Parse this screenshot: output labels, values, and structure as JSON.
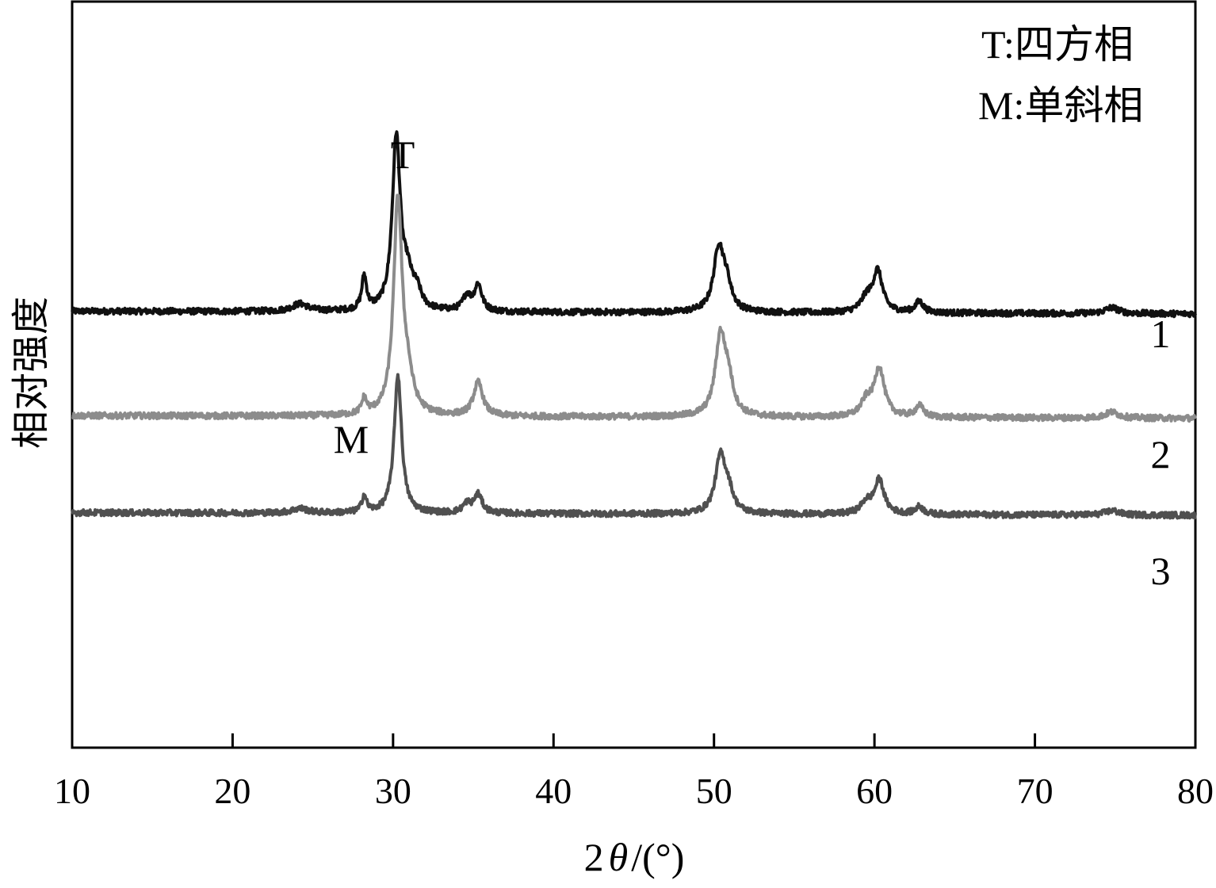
{
  "chart_data": {
    "type": "line",
    "title": "",
    "xlabel": "2θ/(°)",
    "xlabel_parts": {
      "number": "2",
      "symbol": "θ",
      "unit": "/(°)"
    },
    "ylabel": "相对强度",
    "xlim": [
      10,
      80
    ],
    "x_ticks": [
      10,
      20,
      30,
      40,
      50,
      60,
      70,
      80
    ],
    "y_ticks_shown": false,
    "grid": false,
    "legend_lines": [
      "T:四方相",
      "M:单斜相"
    ],
    "legend_position": "top-right",
    "annotations": [
      {
        "text": "T",
        "x": 30.3
      },
      {
        "text": "M",
        "x": 27.3
      }
    ],
    "series": [
      {
        "label": "1",
        "color": "#111111",
        "baseline": 0.585,
        "peaks": [
          {
            "x": 24.2,
            "h": 0.01,
            "w": 0.6
          },
          {
            "x": 28.2,
            "h": 0.045,
            "w": 0.18
          },
          {
            "x": 30.2,
            "h": 0.23,
            "w": 0.3
          },
          {
            "x": 30.9,
            "h": 0.04,
            "w": 0.4
          },
          {
            "x": 31.5,
            "h": 0.02,
            "w": 0.3
          },
          {
            "x": 34.6,
            "h": 0.02,
            "w": 0.3
          },
          {
            "x": 35.3,
            "h": 0.035,
            "w": 0.28
          },
          {
            "x": 50.3,
            "h": 0.085,
            "w": 0.38
          },
          {
            "x": 50.8,
            "h": 0.03,
            "w": 0.35
          },
          {
            "x": 59.5,
            "h": 0.018,
            "w": 0.4
          },
          {
            "x": 60.2,
            "h": 0.055,
            "w": 0.36
          },
          {
            "x": 62.8,
            "h": 0.015,
            "w": 0.3
          },
          {
            "x": 74.8,
            "h": 0.008,
            "w": 0.5
          }
        ]
      },
      {
        "label": "2",
        "color": "#8c8c8c",
        "baseline": 0.445,
        "peaks": [
          {
            "x": 28.2,
            "h": 0.02,
            "w": 0.18
          },
          {
            "x": 30.3,
            "h": 0.285,
            "w": 0.32
          },
          {
            "x": 30.9,
            "h": 0.04,
            "w": 0.4
          },
          {
            "x": 35.3,
            "h": 0.045,
            "w": 0.35
          },
          {
            "x": 50.4,
            "h": 0.105,
            "w": 0.38
          },
          {
            "x": 50.9,
            "h": 0.04,
            "w": 0.35
          },
          {
            "x": 59.5,
            "h": 0.02,
            "w": 0.4
          },
          {
            "x": 60.3,
            "h": 0.065,
            "w": 0.38
          },
          {
            "x": 62.8,
            "h": 0.015,
            "w": 0.3
          },
          {
            "x": 74.8,
            "h": 0.008,
            "w": 0.5
          }
        ]
      },
      {
        "label": "3",
        "color": "#505050",
        "baseline": 0.315,
        "peaks": [
          {
            "x": 24.2,
            "h": 0.006,
            "w": 0.6
          },
          {
            "x": 28.2,
            "h": 0.022,
            "w": 0.18
          },
          {
            "x": 30.3,
            "h": 0.185,
            "w": 0.28
          },
          {
            "x": 34.6,
            "h": 0.012,
            "w": 0.3
          },
          {
            "x": 35.3,
            "h": 0.025,
            "w": 0.3
          },
          {
            "x": 50.4,
            "h": 0.075,
            "w": 0.38
          },
          {
            "x": 50.9,
            "h": 0.025,
            "w": 0.35
          },
          {
            "x": 59.5,
            "h": 0.015,
            "w": 0.4
          },
          {
            "x": 60.3,
            "h": 0.045,
            "w": 0.36
          },
          {
            "x": 62.8,
            "h": 0.01,
            "w": 0.3
          },
          {
            "x": 74.8,
            "h": 0.006,
            "w": 0.5
          }
        ]
      }
    ]
  }
}
